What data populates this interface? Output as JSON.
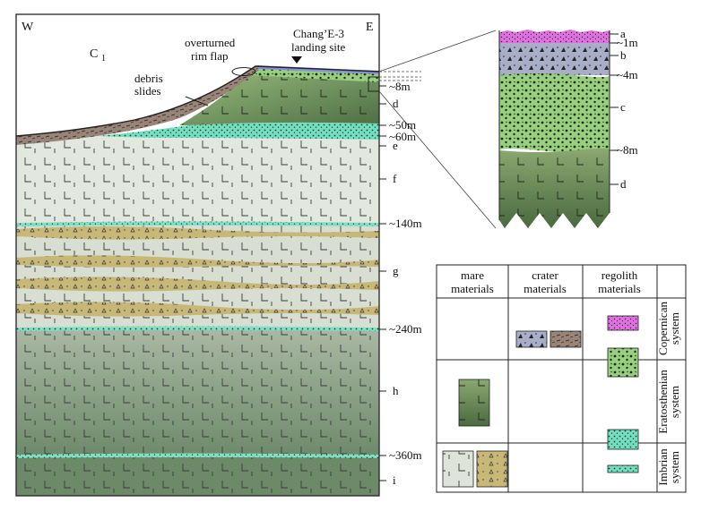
{
  "section": {
    "compass": {
      "west": "W",
      "east": "E"
    },
    "crater_label": "C",
    "crater_subscript": "1",
    "overturned": [
      "overturned",
      "rim flap"
    ],
    "landing_site": [
      "Chang’E-3",
      "landing site"
    ],
    "debris": [
      "debris",
      "slides"
    ],
    "depths": [
      "~8m",
      "~50m",
      "~60m",
      "~140m",
      "~240m",
      "~360m"
    ],
    "layers": [
      "d",
      "e",
      "f",
      "g",
      "h",
      "i"
    ]
  },
  "inset": {
    "depths": [
      "~1m",
      "~4m",
      "~8m"
    ],
    "layers": [
      "a",
      "b",
      "c",
      "d"
    ]
  },
  "legend": {
    "columns": [
      "mare",
      "materials",
      "crater",
      "materials",
      "regolith",
      "materials"
    ],
    "rows": [
      [
        "Copernican",
        "system"
      ],
      [
        "Eratosthenian",
        "system"
      ],
      [
        "Imbrian",
        "system"
      ]
    ]
  },
  "colors": {
    "pink_regolith": "#e070e0",
    "crater_blue": "#a8aec8",
    "regolith_green": "#98d080",
    "mare_dark_green": "#5a7a50",
    "cyan_regolith": "#70e0c0",
    "pale_mare": "#dfe4d8",
    "khaki_breccia": "#c8b878",
    "debris_brown": "#9a8478"
  }
}
